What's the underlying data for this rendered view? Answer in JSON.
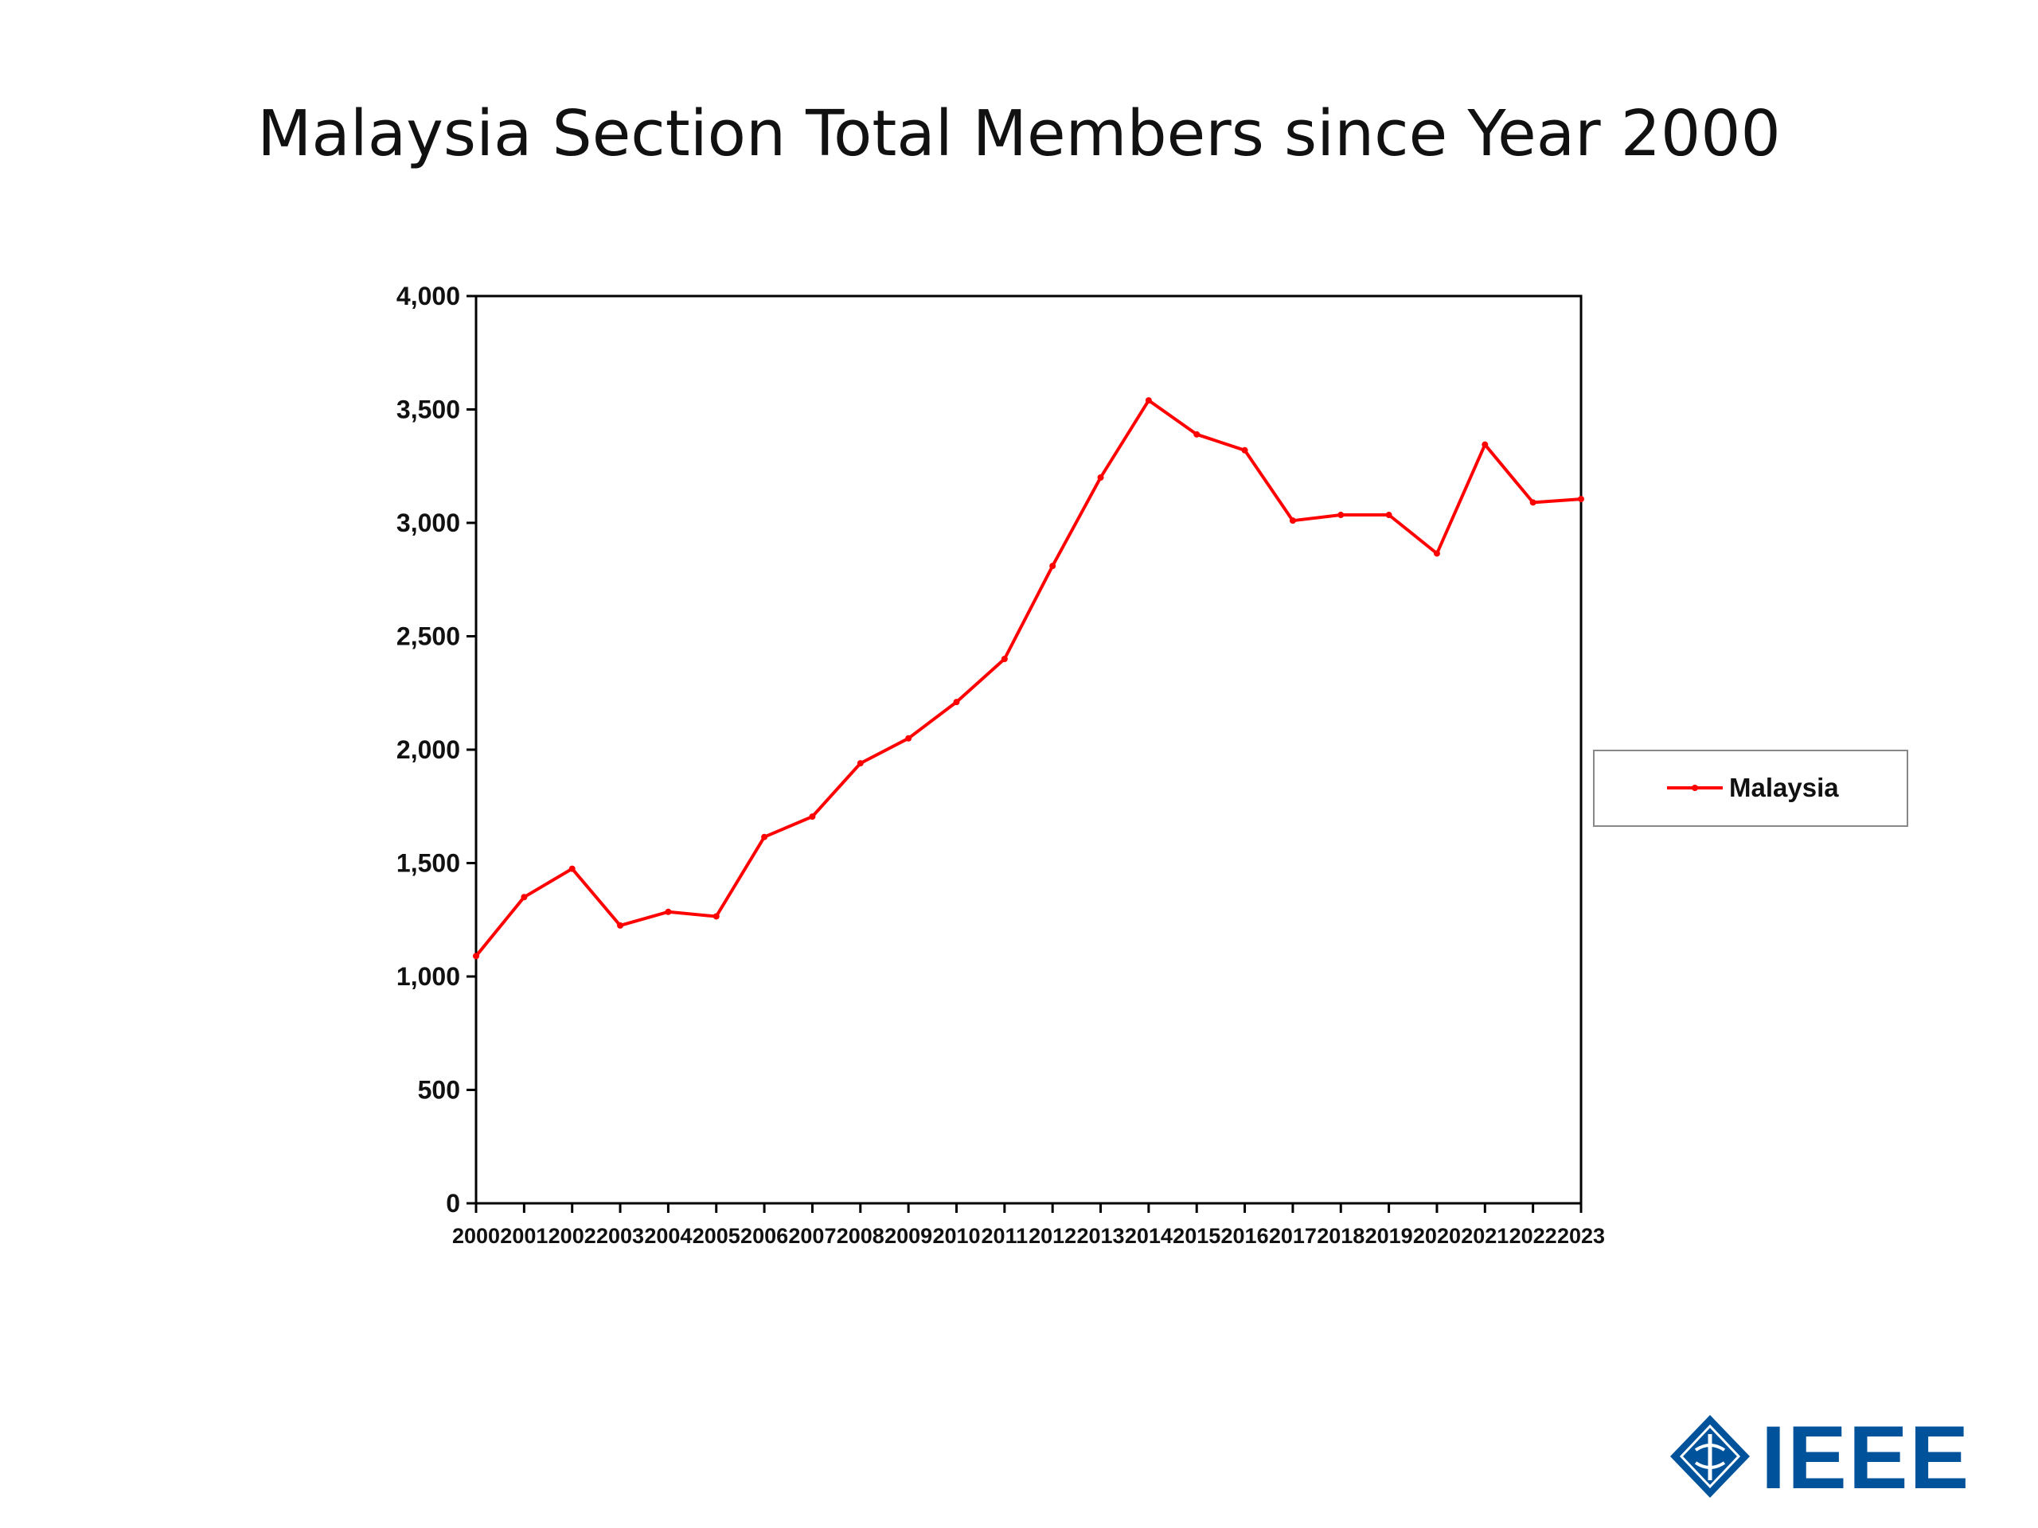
{
  "slide": {
    "title": "Malaysia Section Total Members since Year 2000"
  },
  "logo": {
    "text": "IEEE",
    "color": "#00529b"
  },
  "chart_data": {
    "type": "line",
    "x": [
      "2000",
      "2001",
      "2002",
      "2003",
      "2004",
      "2005",
      "2006",
      "2007",
      "2008",
      "2009",
      "2010",
      "2011",
      "2012",
      "2013",
      "2014",
      "2015",
      "2016",
      "2017",
      "2018",
      "2019",
      "2020",
      "2021",
      "2022",
      "2023"
    ],
    "series": [
      {
        "name": "Malaysia",
        "color": "#ff0000",
        "values": [
          1090,
          1350,
          1475,
          1225,
          1285,
          1265,
          1615,
          1705,
          1940,
          2050,
          2210,
          2400,
          2810,
          3200,
          3540,
          3390,
          3320,
          3010,
          3035,
          3035,
          2865,
          3345,
          3090,
          3105
        ]
      }
    ],
    "ylim": [
      0,
      4000
    ],
    "yticks": [
      0,
      500,
      1000,
      1500,
      2000,
      2500,
      3000,
      3500,
      4000
    ],
    "ytick_labels": [
      "0",
      "500",
      "1,000",
      "1,500",
      "2,000",
      "2,500",
      "3,000",
      "3,500",
      "4,000"
    ],
    "grid": false,
    "legend_position": "right"
  }
}
